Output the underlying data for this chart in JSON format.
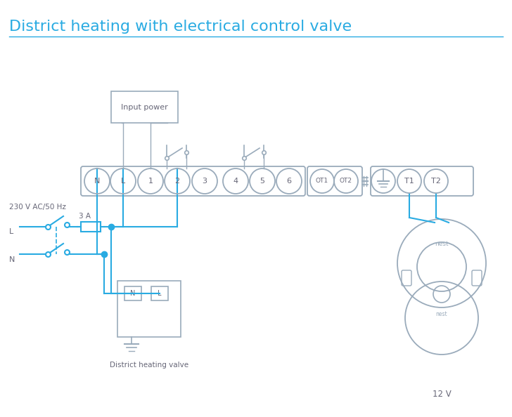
{
  "title": "District heating with electrical control valve",
  "title_color": "#29abe2",
  "title_fontsize": 16,
  "bg_color": "#ffffff",
  "wire_color": "#29abe2",
  "outline_color": "#9aabbb",
  "text_color": "#666677",
  "terminal_labels": [
    "N",
    "L",
    "1",
    "2",
    "3",
    "4",
    "5",
    "6"
  ],
  "ot_labels": [
    "OT1",
    "OT2"
  ],
  "note_12v": "12 V",
  "note_dh": "District heating valve",
  "note_ip": "Input power",
  "note_230": "230 V AC/50 Hz",
  "note_L": "L",
  "note_N": "N",
  "note_3A": "3 A"
}
